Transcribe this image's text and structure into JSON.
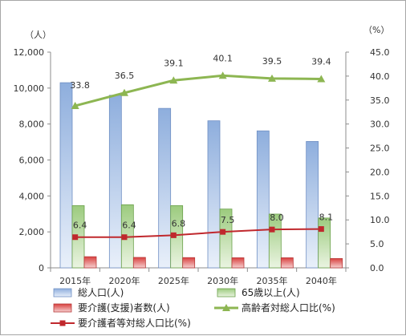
{
  "chart_data": {
    "type": "bar",
    "categories": [
      "2015年",
      "2020年",
      "2025年",
      "2030年",
      "2035年",
      "2040年"
    ],
    "y_left": {
      "unit_label": "（人）",
      "range": [
        0,
        12000
      ],
      "ticks": [
        "0",
        "2,000",
        "4,000",
        "6,000",
        "8,000",
        "10,000",
        "12,000"
      ]
    },
    "y_right": {
      "unit_label": "（%）",
      "range": [
        0,
        45
      ],
      "ticks": [
        "0.0",
        "5.0",
        "10.0",
        "15.0",
        "20.0",
        "25.0",
        "30.0",
        "35.0",
        "40.0",
        "45.0"
      ]
    },
    "series": [
      {
        "name": "総人口(人)",
        "type": "bar",
        "axis": "left",
        "values": [
          10300,
          9600,
          8870,
          8180,
          7620,
          7030
        ]
      },
      {
        "name": "65歳以上(人)",
        "type": "bar",
        "axis": "left",
        "values": [
          3460,
          3510,
          3460,
          3270,
          2990,
          2770
        ]
      },
      {
        "name": "要介護(支援)者数(人)",
        "type": "bar",
        "axis": "left",
        "values": [
          620,
          580,
          570,
          560,
          560,
          520
        ]
      },
      {
        "name": "高齢者対総人口比(%)",
        "type": "line",
        "axis": "right",
        "values": [
          33.8,
          36.5,
          39.1,
          40.1,
          39.5,
          39.4
        ],
        "labels": [
          "33.8",
          "36.5",
          "39.1",
          "40.1",
          "39.5",
          "39.4"
        ]
      },
      {
        "name": "要介護者等対総人口比(%)",
        "type": "line",
        "axis": "right",
        "values": [
          6.4,
          6.4,
          6.8,
          7.5,
          8.0,
          8.1
        ],
        "labels": [
          "6.4",
          "6.4",
          "6.8",
          "7.5",
          "8.0",
          "8.1"
        ]
      }
    ],
    "colors": {
      "total": "#9db9e4",
      "elderly": "#a8d08d",
      "care": "#e06060",
      "elderly_ratio": "#8db652",
      "care_ratio": "#c0282d"
    },
    "grid": false,
    "legend_position": "bottom"
  }
}
